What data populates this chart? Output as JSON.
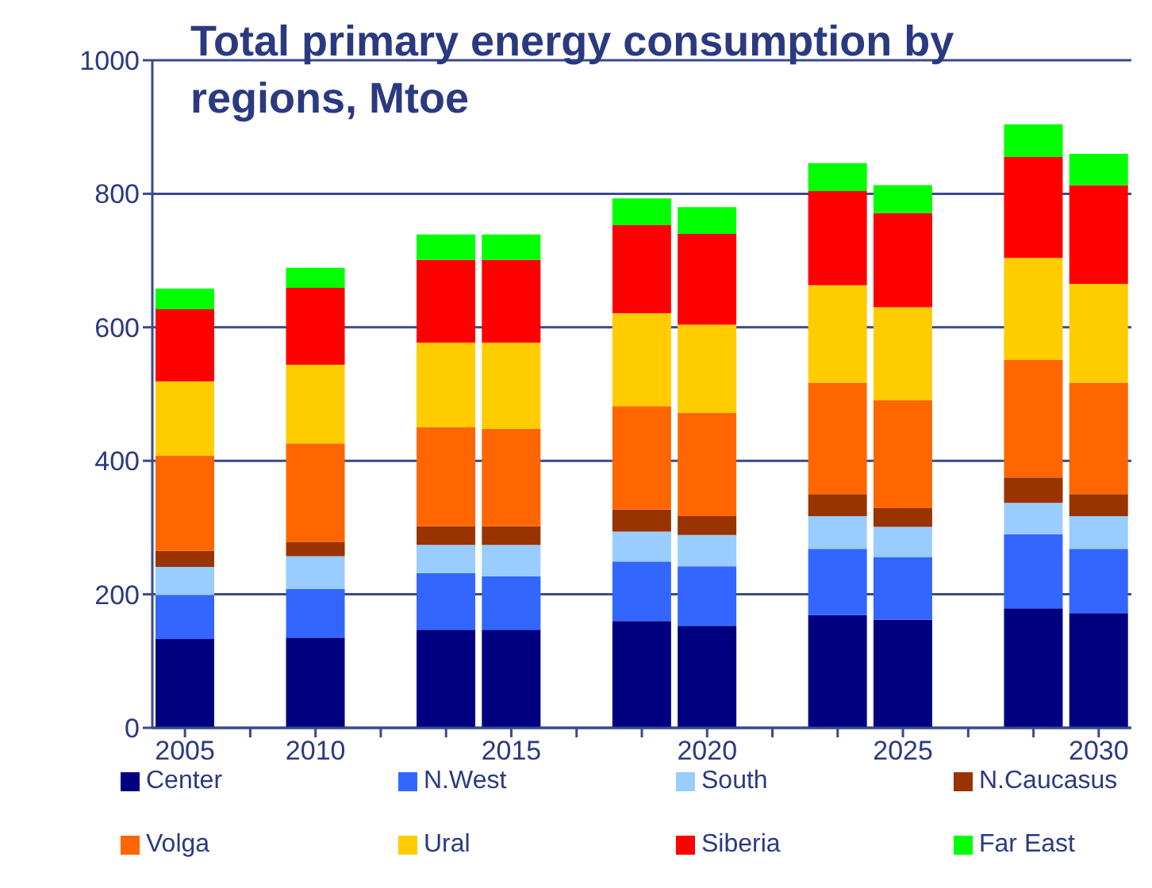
{
  "chart_data": {
    "type": "bar",
    "stacked": true,
    "title": "Total primary energy consumption by regions, Mtoe",
    "categories": [
      "2005",
      null,
      "2010",
      null,
      null,
      "2015",
      null,
      null,
      "2020",
      null,
      null,
      "2025",
      null,
      null,
      "2030"
    ],
    "series": [
      {
        "name": "Center",
        "color": "#000080",
        "values": [
          133,
          null,
          135,
          null,
          147,
          147,
          null,
          160,
          153,
          null,
          169,
          162,
          null,
          179,
          172
        ]
      },
      {
        "name": "N.West",
        "color": "#3366ff",
        "values": [
          66,
          null,
          73,
          null,
          85,
          80,
          null,
          89,
          89,
          null,
          99,
          94,
          null,
          111,
          96
        ]
      },
      {
        "name": "South",
        "color": "#99ccff",
        "values": [
          42,
          null,
          49,
          null,
          42,
          47,
          null,
          45,
          47,
          null,
          49,
          45,
          null,
          47,
          49
        ]
      },
      {
        "name": "N.Caucasus",
        "color": "#993300",
        "values": [
          24,
          null,
          21,
          null,
          28,
          28,
          null,
          33,
          28,
          null,
          33,
          28,
          null,
          38,
          33
        ]
      },
      {
        "name": "Volga",
        "color": "#ff6600",
        "values": [
          143,
          null,
          148,
          null,
          148,
          146,
          null,
          155,
          155,
          null,
          167,
          162,
          null,
          176,
          167
        ]
      },
      {
        "name": "Ural",
        "color": "#ffcc00",
        "values": [
          111,
          null,
          118,
          null,
          127,
          129,
          null,
          139,
          132,
          null,
          146,
          139,
          null,
          153,
          148
        ]
      },
      {
        "name": "Siberia",
        "color": "#ff0000",
        "values": [
          108,
          null,
          115,
          null,
          124,
          124,
          null,
          132,
          136,
          null,
          141,
          141,
          null,
          151,
          148
        ]
      },
      {
        "name": "Far East",
        "color": "#00ff00",
        "values": [
          31,
          null,
          30,
          null,
          38,
          38,
          null,
          40,
          40,
          null,
          42,
          42,
          null,
          49,
          47
        ]
      }
    ],
    "ylim": [
      0,
      1000
    ],
    "yticks": [
      0,
      200,
      400,
      600,
      800,
      1000
    ],
    "grid": "y",
    "legend": "bottom"
  }
}
